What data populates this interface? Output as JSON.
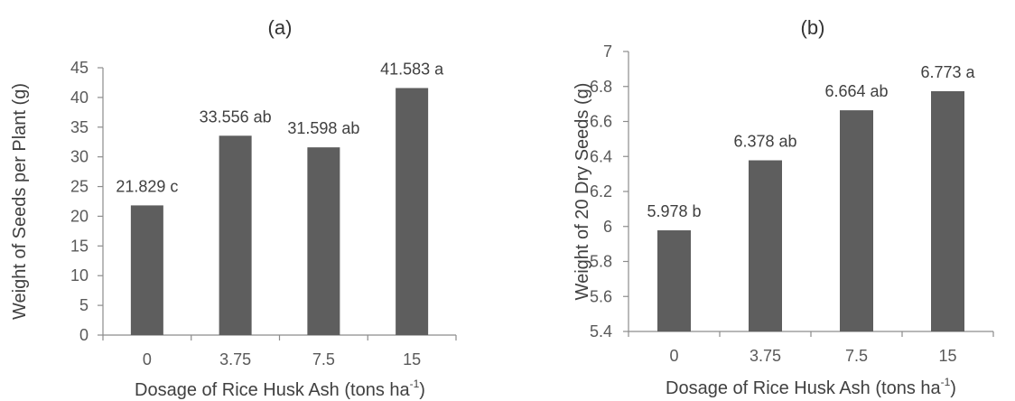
{
  "colors": {
    "bar": "#5e5e5e",
    "axis": "#8c8c8c",
    "text": "#404040"
  },
  "chart_data": [
    {
      "type": "bar",
      "title": "(a)",
      "xlabel": "Dosage of Rice Husk Ash (tons ha",
      "xlabel_sup": "-1",
      "xlabel_end": ")",
      "ylabel": "Weight of Seeds per Plant (g)",
      "categories": [
        "0",
        "3.75",
        "7.5",
        "15"
      ],
      "values": [
        21.829,
        33.556,
        31.598,
        41.583
      ],
      "data_labels": [
        "21.829 c",
        "33.556 ab",
        "31.598 ab",
        "41.583 a"
      ],
      "ylim": [
        0,
        45
      ],
      "yticks": [
        "0",
        "5",
        "10",
        "15",
        "20",
        "25",
        "30",
        "35",
        "40",
        "45"
      ],
      "grid": false,
      "legend": "none"
    },
    {
      "type": "bar",
      "title": "(b)",
      "xlabel": "Dosage of Rice Husk Ash (tons ha",
      "xlabel_sup": "-1",
      "xlabel_end": ")",
      "ylabel": "Weight of 20 Dry Seeds (g)",
      "categories": [
        "0",
        "3.75",
        "7.5",
        "15"
      ],
      "values": [
        5.978,
        6.378,
        6.664,
        6.773
      ],
      "data_labels": [
        "5.978 b",
        "6.378 ab",
        "6.664 ab",
        "6.773 a"
      ],
      "ylim": [
        5.4,
        7
      ],
      "yticks": [
        "5.4",
        "5.6",
        "5.8",
        "6",
        "6.2",
        "6.4",
        "6.6",
        "6.8",
        "7"
      ],
      "grid": false,
      "legend": "none"
    }
  ]
}
